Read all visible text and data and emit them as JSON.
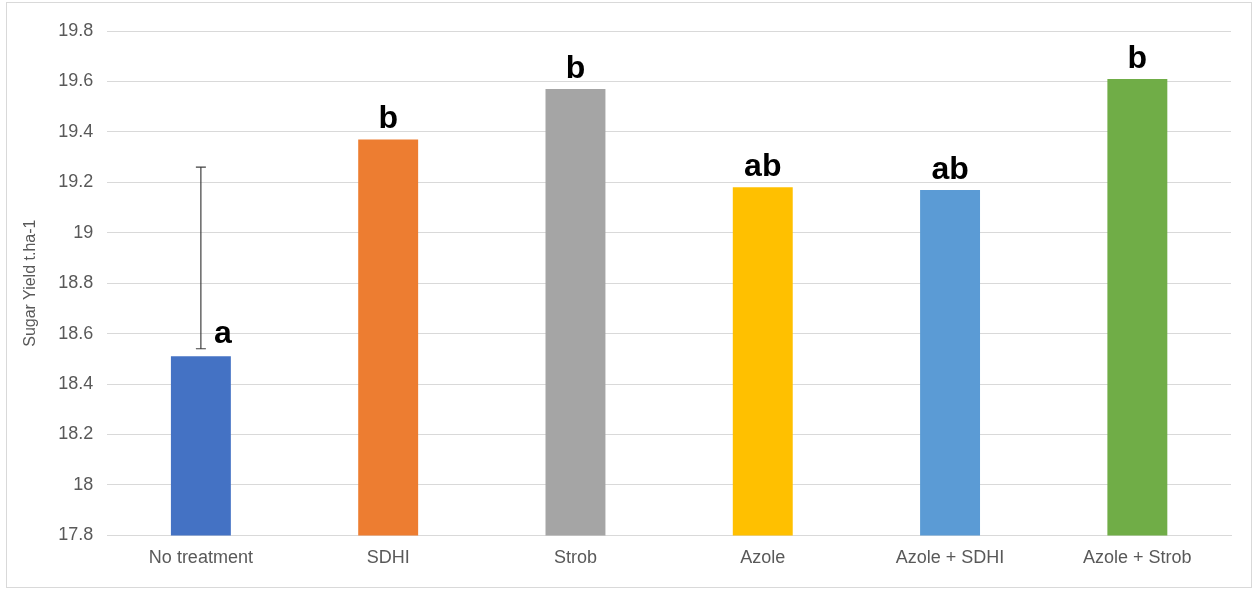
{
  "chart_data": {
    "type": "bar",
    "ylabel": "Sugar Yield t.ha-1",
    "categories": [
      "No treatment",
      "SDHI",
      "Strob",
      "Azole",
      "Azole + SDHI",
      "Azole + Strob"
    ],
    "values": [
      18.51,
      19.37,
      19.57,
      19.18,
      19.17,
      19.61
    ],
    "colors": [
      "#4472c4",
      "#ed7d31",
      "#a5a5a5",
      "#ffc000",
      "#5b9bd5",
      "#70ad47"
    ],
    "errors": [
      [
        18.54,
        19.26
      ],
      null,
      null,
      null,
      null,
      null
    ],
    "ylim": [
      17.8,
      19.8
    ],
    "yticks": [
      17.8,
      18,
      18.2,
      18.4,
      18.6,
      18.8,
      19,
      19.2,
      19.4,
      19.6,
      19.8
    ],
    "grid": "y",
    "legend": false,
    "annotations": [
      {
        "text": "a",
        "x": "No treatment",
        "y": 18.51
      },
      {
        "text": "b",
        "x": "SDHI",
        "y": 19.37
      },
      {
        "text": "b",
        "x": "Strob",
        "y": 19.57
      },
      {
        "text": "ab",
        "x": "Azole",
        "y": 19.18
      },
      {
        "text": "ab",
        "x": "Azole + SDHI",
        "y": 19.17
      },
      {
        "text": "b",
        "x": "Azole + Strob",
        "y": 19.61
      }
    ]
  }
}
